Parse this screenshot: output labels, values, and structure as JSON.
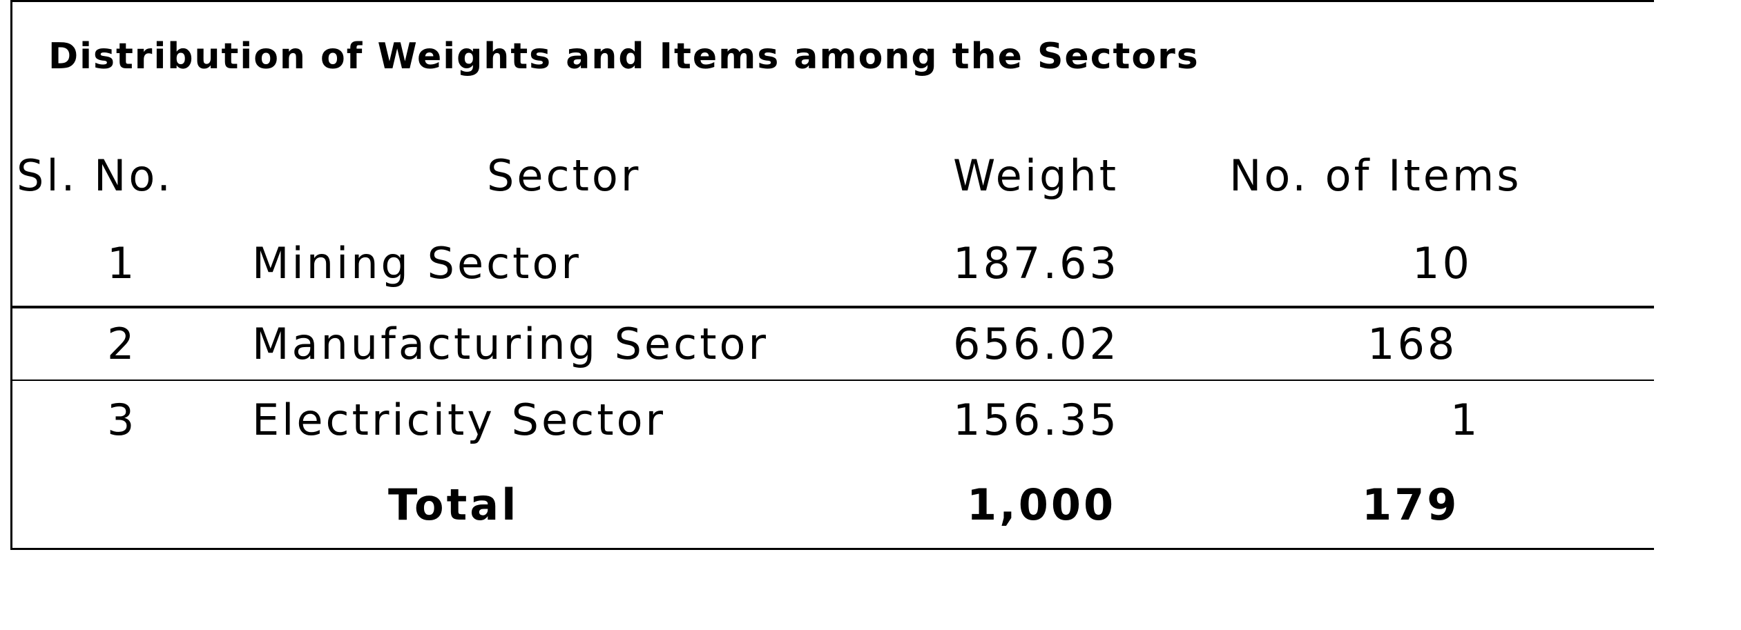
{
  "table": {
    "title": "Distribution of Weights and Items among the Sectors",
    "headers": {
      "sl_no": "Sl. No.",
      "sector": "Sector",
      "weight": "Weight",
      "items": "No. of Items"
    },
    "rows": [
      {
        "sl_no": "1",
        "sector": "Mining Sector",
        "weight": "187.63",
        "items": "10"
      },
      {
        "sl_no": "2",
        "sector": "Manufacturing Sector",
        "weight": "656.02",
        "items": "168"
      },
      {
        "sl_no": "3",
        "sector": "Electricity Sector",
        "weight": "156.35",
        "items": "1"
      }
    ],
    "total": {
      "label": "Total",
      "weight": "1,000",
      "items": "179"
    }
  }
}
